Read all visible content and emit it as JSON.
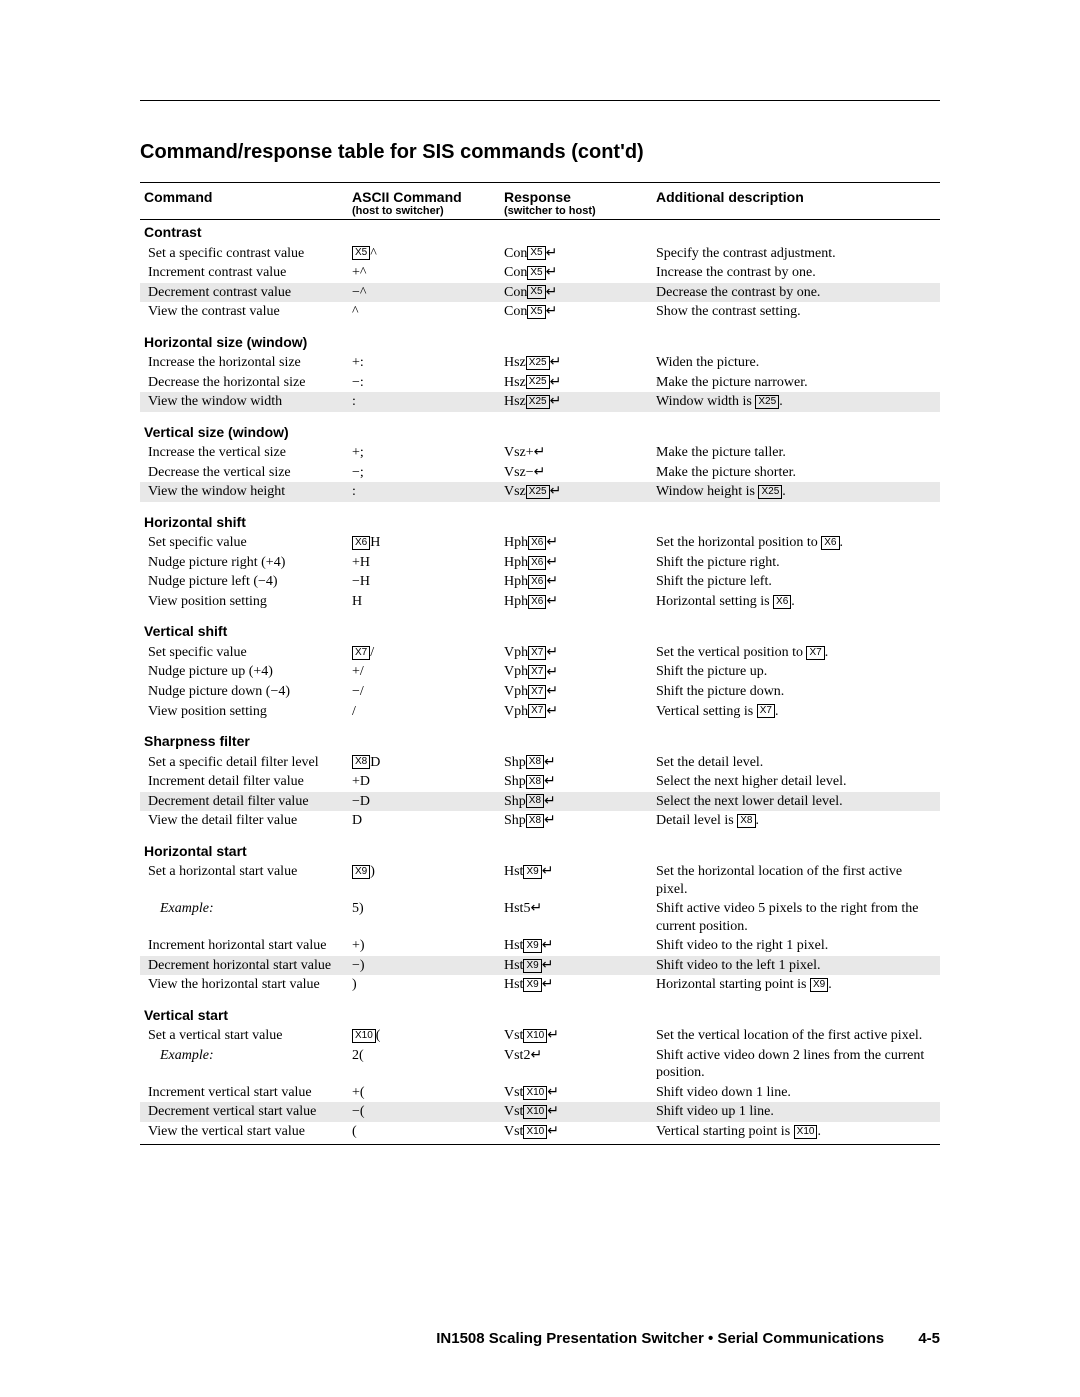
{
  "page_title": "Command/response table for SIS commands (cont'd)",
  "columns": {
    "c1": "Command",
    "c2": "ASCII Command",
    "c2sub": "(host to switcher)",
    "c3": "Response",
    "c3sub": "(switcher to host)",
    "c4": "Additional description"
  },
  "footer": {
    "text": "IN1508 Scaling Presentation Switcher • Serial Communications",
    "page": "4-5"
  },
  "sections": [
    {
      "title": "Contrast",
      "rows": [
        {
          "shaded": false,
          "cmd": "Set a specific contrast value",
          "ascii_pre": "",
          "ascii_var": "X5",
          "ascii_post": "^",
          "resp_pre": "Con",
          "resp_var": "X5",
          "resp_post": "",
          "desc": "Specify the contrast adjustment."
        },
        {
          "shaded": false,
          "cmd": "Increment contrast value",
          "ascii_pre": "+^",
          "ascii_var": "",
          "ascii_post": "",
          "resp_pre": "Con",
          "resp_var": "X5",
          "resp_post": "",
          "desc": "Increase the contrast by one."
        },
        {
          "shaded": true,
          "cmd": "Decrement contrast value",
          "ascii_pre": "−^",
          "ascii_var": "",
          "ascii_post": "",
          "resp_pre": "Con",
          "resp_var": "X5",
          "resp_post": "",
          "desc": "Decrease the contrast by one."
        },
        {
          "shaded": false,
          "cmd": "View the contrast value",
          "ascii_pre": "^",
          "ascii_var": "",
          "ascii_post": "",
          "resp_pre": "Con",
          "resp_var": "X5",
          "resp_post": "",
          "desc": "Show the contrast setting."
        }
      ]
    },
    {
      "title": "Horizontal size (window)",
      "rows": [
        {
          "shaded": false,
          "cmd": "Increase the horizontal size",
          "ascii_pre": "+:",
          "ascii_var": "",
          "ascii_post": "",
          "resp_pre": "Hsz",
          "resp_var": "X25",
          "resp_post": "",
          "desc": "Widen the picture."
        },
        {
          "shaded": false,
          "cmd": "Decrease the horizontal size",
          "ascii_pre": "−:",
          "ascii_var": "",
          "ascii_post": "",
          "resp_pre": "Hsz",
          "resp_var": "X25",
          "resp_post": "",
          "desc": "Make the picture narrower."
        },
        {
          "shaded": true,
          "cmd": "View the window width",
          "ascii_pre": ":",
          "ascii_var": "",
          "ascii_post": "",
          "resp_pre": "Hsz",
          "resp_var": "X25",
          "resp_post": "",
          "desc": "Window width is ",
          "desc_var": "X25",
          "desc_post": "."
        }
      ]
    },
    {
      "title": "Vertical size (window)",
      "rows": [
        {
          "shaded": false,
          "cmd": "Increase the vertical size",
          "ascii_pre": "+;",
          "ascii_var": "",
          "ascii_post": "",
          "resp_pre": "Vsz+",
          "resp_var": "",
          "resp_post": "",
          "desc": "Make the picture taller."
        },
        {
          "shaded": false,
          "cmd": "Decrease the vertical size",
          "ascii_pre": "−;",
          "ascii_var": "",
          "ascii_post": "",
          "resp_pre": "Vsz−",
          "resp_var": "",
          "resp_post": "",
          "desc": "Make the picture shorter."
        },
        {
          "shaded": true,
          "cmd": "View the window height",
          "ascii_pre": ":",
          "ascii_var": "",
          "ascii_post": "",
          "resp_pre": "Vsz",
          "resp_var": "X25",
          "resp_post": "",
          "desc": "Window height is ",
          "desc_var": "X25",
          "desc_post": "."
        }
      ]
    },
    {
      "title": "Horizontal shift",
      "rows": [
        {
          "shaded": false,
          "cmd": "Set specific value",
          "ascii_pre": "",
          "ascii_var": "X6",
          "ascii_post": "H",
          "resp_pre": "Hph",
          "resp_var": "X6",
          "resp_post": "",
          "desc": "Set the horizontal position to ",
          "desc_var": "X6",
          "desc_post": "."
        },
        {
          "shaded": false,
          "cmd": "Nudge picture right (+4)",
          "ascii_pre": "+H",
          "ascii_var": "",
          "ascii_post": "",
          "resp_pre": "Hph",
          "resp_var": "X6",
          "resp_post": "",
          "desc": "Shift the picture right."
        },
        {
          "shaded": false,
          "cmd": "Nudge picture left (−4)",
          "ascii_pre": "−H",
          "ascii_var": "",
          "ascii_post": "",
          "resp_pre": "Hph",
          "resp_var": "X6",
          "resp_post": "",
          "desc": "Shift the picture left."
        },
        {
          "shaded": false,
          "cmd": "View position setting",
          "ascii_pre": "H",
          "ascii_var": "",
          "ascii_post": "",
          "resp_pre": "Hph",
          "resp_var": "X6",
          "resp_post": "",
          "desc": "Horizontal setting is ",
          "desc_var": "X6",
          "desc_post": "."
        }
      ]
    },
    {
      "title": "Vertical shift",
      "rows": [
        {
          "shaded": false,
          "cmd": "Set specific value",
          "ascii_pre": "",
          "ascii_var": "X7",
          "ascii_post": "/",
          "resp_pre": "Vph",
          "resp_var": "X7",
          "resp_post": "",
          "desc": "Set the vertical position to ",
          "desc_var": "X7",
          "desc_post": "."
        },
        {
          "shaded": false,
          "cmd": "Nudge picture up (+4)",
          "ascii_pre": "+/",
          "ascii_var": "",
          "ascii_post": "",
          "resp_pre": "Vph",
          "resp_var": "X7",
          "resp_post": "",
          "desc": "Shift the picture up."
        },
        {
          "shaded": false,
          "cmd": "Nudge picture down (−4)",
          "ascii_pre": "−/",
          "ascii_var": "",
          "ascii_post": "",
          "resp_pre": "Vph",
          "resp_var": "X7",
          "resp_post": "",
          "desc": "Shift the picture down."
        },
        {
          "shaded": false,
          "cmd": "View position setting",
          "ascii_pre": "/",
          "ascii_var": "",
          "ascii_post": "",
          "resp_pre": "Vph",
          "resp_var": "X7",
          "resp_post": "",
          "desc": "Vertical setting is ",
          "desc_var": "X7",
          "desc_post": "."
        }
      ]
    },
    {
      "title": "Sharpness filter",
      "rows": [
        {
          "shaded": false,
          "cmd": "Set a specific detail filter level",
          "ascii_pre": "",
          "ascii_var": "X8",
          "ascii_post": "D",
          "resp_pre": "Shp",
          "resp_var": "X8",
          "resp_post": "",
          "desc": "Set the detail level."
        },
        {
          "shaded": false,
          "cmd": "Increment detail filter value",
          "ascii_pre": "+D",
          "ascii_var": "",
          "ascii_post": "",
          "resp_pre": "Shp",
          "resp_var": "X8",
          "resp_post": "",
          "desc": "Select the next higher detail level."
        },
        {
          "shaded": true,
          "cmd": "Decrement detail filter value",
          "ascii_pre": "−D",
          "ascii_var": "",
          "ascii_post": "",
          "resp_pre": "Shp",
          "resp_var": "X8",
          "resp_post": "",
          "desc": "Select the next lower detail level."
        },
        {
          "shaded": false,
          "cmd": "View the detail filter value",
          "ascii_pre": "D",
          "ascii_var": "",
          "ascii_post": "",
          "resp_pre": "Shp",
          "resp_var": "X8",
          "resp_post": "",
          "desc": "Detail level is ",
          "desc_var": "X8",
          "desc_post": "."
        }
      ]
    },
    {
      "title": "Horizontal start",
      "rows": [
        {
          "shaded": false,
          "cmd": "Set a horizontal start value",
          "ascii_pre": "",
          "ascii_var": "X9",
          "ascii_post": ")",
          "resp_pre": "Hst",
          "resp_var": "X9",
          "resp_post": "",
          "desc": "Set the horizontal location of the first active pixel."
        },
        {
          "shaded": false,
          "italic": true,
          "cmd": "Example:",
          "ascii_pre": "5)",
          "ascii_var": "",
          "ascii_post": "",
          "resp_pre": "Hst5",
          "resp_var": "",
          "resp_post": "",
          "desc": "Shift active video 5 pixels to the right from the current position."
        },
        {
          "shaded": false,
          "cmd": "Increment horizontal start value",
          "ascii_pre": "+)",
          "ascii_var": "",
          "ascii_post": "",
          "resp_pre": "Hst",
          "resp_var": "X9",
          "resp_post": "",
          "desc": "Shift video to the right 1 pixel."
        },
        {
          "shaded": true,
          "cmd": "Decrement horizontal start value",
          "ascii_pre": "−)",
          "ascii_var": "",
          "ascii_post": "",
          "resp_pre": "Hst",
          "resp_var": "X9",
          "resp_post": "",
          "desc": "Shift video to the left 1 pixel."
        },
        {
          "shaded": false,
          "cmd": "View the horizontal start value",
          "ascii_pre": ")",
          "ascii_var": "",
          "ascii_post": "",
          "resp_pre": "Hst",
          "resp_var": "X9",
          "resp_post": "",
          "desc": "Horizontal starting point is ",
          "desc_var": "X9",
          "desc_post": "."
        }
      ]
    },
    {
      "title": "Vertical start",
      "rows": [
        {
          "shaded": false,
          "cmd": "Set a vertical start value",
          "ascii_pre": "",
          "ascii_var": "X10",
          "ascii_post": "(",
          "resp_pre": "Vst",
          "resp_var": "X10",
          "resp_post": "",
          "desc": "Set the vertical location of the first active pixel."
        },
        {
          "shaded": false,
          "italic": true,
          "cmd": "Example:",
          "ascii_pre": "2(",
          "ascii_var": "",
          "ascii_post": "",
          "resp_pre": "Vst2",
          "resp_var": "",
          "resp_post": "",
          "desc": "Shift active video down 2 lines from the current position."
        },
        {
          "shaded": false,
          "cmd": "Increment vertical start value",
          "ascii_pre": "+(",
          "ascii_var": "",
          "ascii_post": "",
          "resp_pre": "Vst",
          "resp_var": "X10",
          "resp_post": "",
          "desc": "Shift video down 1 line."
        },
        {
          "shaded": true,
          "cmd": "Decrement vertical start value",
          "ascii_pre": "−(",
          "ascii_var": "",
          "ascii_post": "",
          "resp_pre": "Vst",
          "resp_var": "X10",
          "resp_post": "",
          "desc": "Shift video up 1 line."
        },
        {
          "shaded": false,
          "cmd": "View the vertical start value",
          "ascii_pre": "(",
          "ascii_var": "",
          "ascii_post": "",
          "resp_pre": "Vst",
          "resp_var": "X10",
          "resp_post": "",
          "desc": "Vertical starting point is ",
          "desc_var": "X10",
          "desc_post": "."
        }
      ]
    }
  ]
}
